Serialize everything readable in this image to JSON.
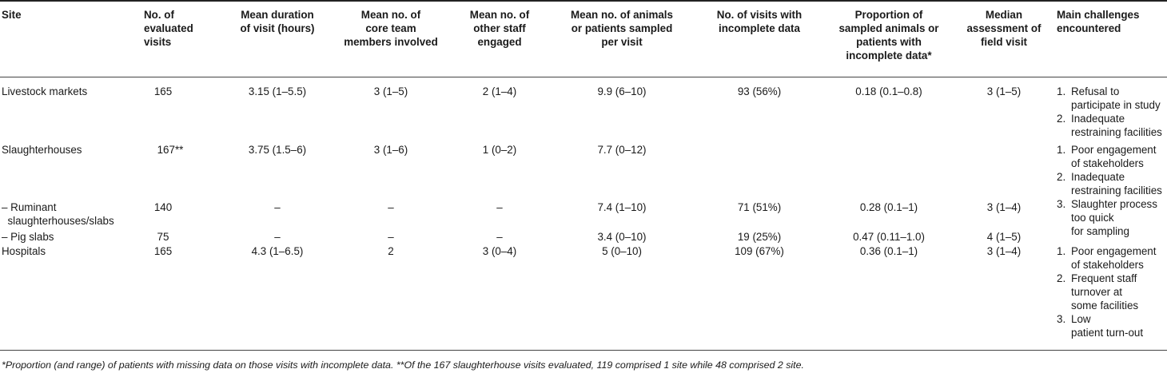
{
  "headers": {
    "site": "Site",
    "evaluated": "No. of\nevaluated\nvisits",
    "duration": "Mean duration\nof visit (hours)",
    "core": "Mean no. of\ncore team\nmembers involved",
    "other": "Mean no. of\nother staff\nengaged",
    "animals": "Mean no. of animals\nor patients sampled\nper visit",
    "incomplete": "No. of visits with\nincomplete data",
    "proportion": "Proportion of\nsampled animals or\npatients with\nincomplete data*",
    "median": "Median\nassessment of\nfield visit",
    "challenges": "Main challenges\nencountered"
  },
  "rows": [
    {
      "site": "Livestock markets",
      "evaluated": "165",
      "duration": "3.15 (1–5.5)",
      "core": "3 (1–5)",
      "other": "2 (1–4)",
      "animals": "9.9 (6–10)",
      "incomplete": "93 (56%)",
      "proportion": "0.18 (0.1–0.8)",
      "median": "3 (1–5)"
    },
    {
      "site": "Slaughterhouses",
      "evaluated": "167**",
      "duration": "3.75 (1.5–6)",
      "core": "3 (1–6)",
      "other": "1 (0–2)",
      "animals": "7.7 (0–12)",
      "incomplete": "",
      "proportion": "",
      "median": ""
    },
    {
      "site": "– Ruminant\n  slaughterhouses/slabs",
      "evaluated": "140",
      "duration": "–",
      "core": "–",
      "other": "–",
      "animals": "7.4 (1–10)",
      "incomplete": "71 (51%)",
      "proportion": "0.28 (0.1–1)",
      "median": "3 (1–4)"
    },
    {
      "site": "– Pig slabs",
      "evaluated": "75",
      "duration": "–",
      "core": "–",
      "other": "–",
      "animals": "3.4 (0–10)",
      "incomplete": "19 (25%)",
      "proportion": "0.47 (0.11–1.0)",
      "median": "4 (1–5)"
    },
    {
      "site": "Hospitals",
      "evaluated": "165",
      "duration": "4.3 (1–6.5)",
      "core": "2",
      "other": "3 (0–4)",
      "animals": "5 (0–10)",
      "incomplete": "109 (67%)",
      "proportion": "0.36 (0.1–1)",
      "median": "3 (1–4)"
    }
  ],
  "challenges": {
    "livestock": [
      {
        "num": "1.",
        "text": "Refusal to\nparticipate in study"
      },
      {
        "num": "2.",
        "text": "Inadequate\nrestraining facilities"
      }
    ],
    "slaughter": [
      {
        "num": "1.",
        "text": "Poor  engagement\nof stakeholders"
      },
      {
        "num": "2.",
        "text": "Inadequate\nrestraining facilities"
      },
      {
        "num": "3.",
        "text": "Slaughter process\ntoo quick\nfor sampling"
      }
    ],
    "hospitals": [
      {
        "num": "1.",
        "text": "Poor engagement\nof stakeholders"
      },
      {
        "num": "2.",
        "text": "Frequent staff\nturnover at\nsome facilities"
      },
      {
        "num": "3.",
        "text": "Low\npatient turn-out"
      }
    ]
  },
  "footnote": "*Proportion (and range) of patients with missing data on those visits with incomplete data. **Of the 167 slaughterhouse visits evaluated, 119 comprised 1 site while 48 comprised 2 site."
}
